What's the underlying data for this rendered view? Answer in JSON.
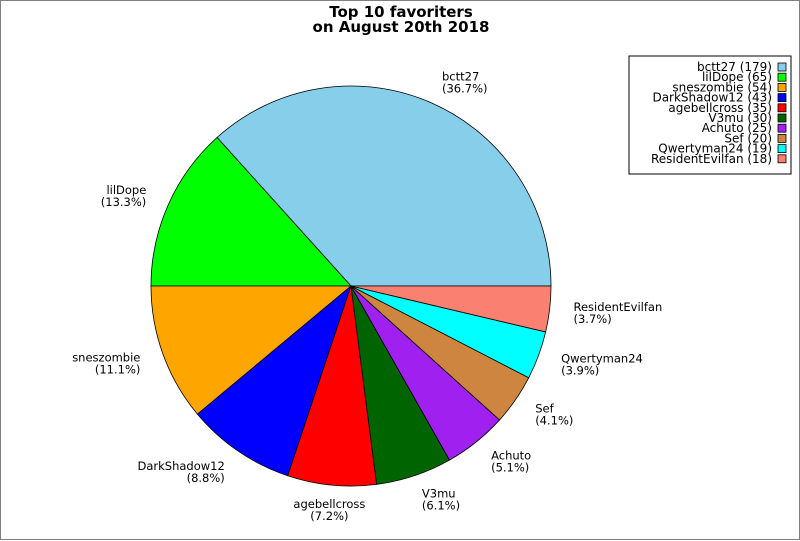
{
  "chart_data": {
    "type": "pie",
    "title_lines": [
      "Top 10 favoriters",
      "on August 20th 2018"
    ],
    "start_angle_deg": 0,
    "direction": "counterclockwise",
    "legend_position": "top-right",
    "slices": [
      {
        "name": "bctt27",
        "value": 179,
        "percent": "(36.7%)",
        "legend": "bctt27 (179)",
        "color": "#87ceeb"
      },
      {
        "name": "lilDope",
        "value": 65,
        "percent": "(13.3%)",
        "legend": "lilDope (65)",
        "color": "#00ff00"
      },
      {
        "name": "sneszombie",
        "value": 54,
        "percent": "(11.1%)",
        "legend": "sneszombie (54)",
        "color": "#ffa500"
      },
      {
        "name": "DarkShadow12",
        "value": 43,
        "percent": "(8.8%)",
        "legend": "DarkShadow12 (43)",
        "color": "#0000ff"
      },
      {
        "name": "agebellcross",
        "value": 35,
        "percent": "(7.2%)",
        "legend": "agebellcross (35)",
        "color": "#ff0000"
      },
      {
        "name": "V3mu",
        "value": 30,
        "percent": "(6.1%)",
        "legend": "V3mu (30)",
        "color": "#006400"
      },
      {
        "name": "Achuto",
        "value": 25,
        "percent": "(5.1%)",
        "legend": "Achuto (25)",
        "color": "#a020f0"
      },
      {
        "name": "Sef",
        "value": 20,
        "percent": "(4.1%)",
        "legend": "Sef (20)",
        "color": "#cd853f"
      },
      {
        "name": "Qwertyman24",
        "value": 19,
        "percent": "(3.9%)",
        "legend": "Qwertyman24 (19)",
        "color": "#00ffff"
      },
      {
        "name": "ResidentEvilfan",
        "value": 18,
        "percent": "(3.7%)",
        "legend": "ResidentEvilfan (18)",
        "color": "#fa8072"
      }
    ]
  }
}
